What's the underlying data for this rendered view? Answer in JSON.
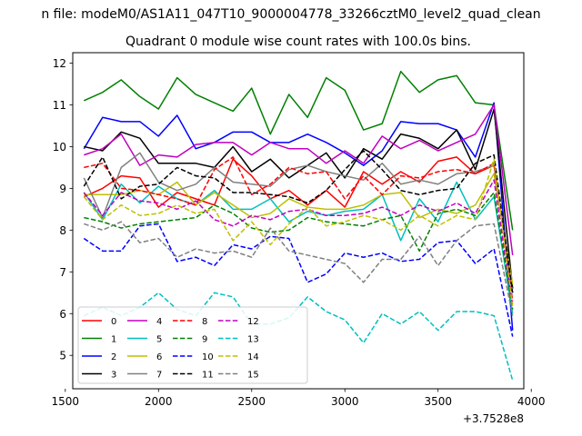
{
  "suptitle": "n file: modeM0/AS1A11_047T10_9000004778_33266cztM0_level2_quad_clean",
  "chart_data": {
    "type": "line",
    "title": "Quadrant 0 module wise count rates with 100.0s bins.",
    "xlabel": "",
    "ylabel": "",
    "x_offset_label": "+3.7528e8",
    "xlim": [
      1540,
      3960
    ],
    "ylim": [
      4.2,
      12.25
    ],
    "x_ticks": [
      1500,
      2000,
      2500,
      3000,
      3500,
      4000
    ],
    "x_tick_labels": [
      "1500",
      "2000",
      "2500",
      "3000",
      "3500",
      "4000"
    ],
    "y_ticks": [
      5,
      6,
      7,
      8,
      9,
      10,
      11,
      12
    ],
    "y_tick_labels": [
      "5",
      "6",
      "7",
      "8",
      "9",
      "10",
      "11",
      "12"
    ],
    "grid": false,
    "legend_location": "lower-left",
    "legend_columns": 5,
    "x": [
      1600,
      1700,
      1800,
      1900,
      2000,
      2100,
      2200,
      2300,
      2400,
      2500,
      2600,
      2700,
      2800,
      2900,
      3000,
      3100,
      3200,
      3300,
      3400,
      3500,
      3600,
      3700,
      3800,
      3900
    ],
    "series": [
      {
        "name": "0",
        "color": "#ff0000",
        "dash": "solid",
        "values": [
          8.8,
          9.0,
          9.3,
          9.25,
          8.55,
          8.9,
          8.75,
          8.6,
          9.7,
          9.3,
          8.75,
          8.95,
          8.6,
          8.95,
          8.55,
          9.4,
          9.1,
          9.4,
          9.15,
          9.65,
          9.75,
          9.35,
          9.55,
          6.6
        ]
      },
      {
        "name": "1",
        "color": "#008000",
        "dash": "solid",
        "values": [
          11.1,
          11.3,
          11.6,
          11.2,
          10.9,
          11.65,
          11.25,
          11.05,
          10.85,
          11.4,
          10.3,
          11.25,
          10.7,
          11.65,
          11.35,
          10.4,
          10.55,
          11.8,
          11.3,
          11.6,
          11.7,
          11.05,
          11.0,
          8.0
        ]
      },
      {
        "name": "2",
        "color": "#0000ff",
        "dash": "solid",
        "values": [
          9.95,
          10.7,
          10.6,
          10.6,
          10.25,
          10.75,
          9.95,
          10.1,
          10.35,
          10.35,
          10.1,
          10.1,
          10.3,
          10.1,
          9.85,
          9.55,
          9.9,
          10.6,
          10.55,
          10.55,
          10.4,
          9.75,
          11.05,
          5.6
        ]
      },
      {
        "name": "3",
        "color": "#000000",
        "dash": "solid",
        "values": [
          10.0,
          9.9,
          10.35,
          10.2,
          9.6,
          9.6,
          9.6,
          9.5,
          10.0,
          9.4,
          9.7,
          9.25,
          9.55,
          9.85,
          9.25,
          9.95,
          9.7,
          10.3,
          10.2,
          9.95,
          10.4,
          9.45,
          10.9,
          6.6
        ]
      },
      {
        "name": "4",
        "color": "#bf00bf",
        "dash": "solid",
        "values": [
          9.8,
          9.95,
          10.3,
          9.55,
          9.8,
          9.75,
          10.05,
          10.1,
          10.1,
          9.8,
          10.1,
          9.95,
          9.95,
          9.6,
          9.9,
          9.6,
          10.25,
          9.95,
          10.15,
          9.9,
          10.1,
          10.3,
          11.0,
          7.4
        ]
      },
      {
        "name": "5",
        "color": "#00bfbf",
        "dash": "solid",
        "values": [
          8.9,
          8.25,
          9.1,
          8.65,
          9.05,
          8.75,
          8.6,
          8.95,
          8.5,
          8.5,
          8.75,
          8.2,
          8.45,
          8.35,
          8.45,
          8.5,
          8.85,
          7.75,
          8.75,
          8.2,
          9.15,
          8.25,
          8.8,
          6.0
        ]
      },
      {
        "name": "6",
        "color": "#bfbf00",
        "dash": "solid",
        "values": [
          8.85,
          8.85,
          8.85,
          8.95,
          8.85,
          9.15,
          8.6,
          8.9,
          8.6,
          8.3,
          8.4,
          8.75,
          8.55,
          8.5,
          8.5,
          8.6,
          8.85,
          8.9,
          8.3,
          8.5,
          8.4,
          8.6,
          9.35,
          6.7
        ]
      },
      {
        "name": "7",
        "color": "#808080",
        "dash": "solid",
        "values": [
          9.25,
          8.3,
          9.5,
          9.85,
          9.15,
          8.95,
          9.1,
          9.5,
          9.15,
          9.1,
          9.05,
          9.45,
          9.55,
          9.4,
          9.3,
          9.2,
          9.6,
          9.1,
          9.2,
          9.1,
          9.35,
          9.4,
          9.55,
          6.5
        ]
      },
      {
        "name": "8",
        "color": "#ff0000",
        "dash": "dashed",
        "values": [
          9.5,
          9.6,
          9.0,
          8.95,
          8.85,
          8.75,
          8.6,
          9.45,
          9.75,
          8.85,
          9.1,
          9.5,
          9.35,
          9.4,
          8.75,
          9.3,
          8.85,
          9.3,
          9.25,
          9.4,
          9.45,
          9.35,
          9.6,
          6.3
        ]
      },
      {
        "name": "9",
        "color": "#008000",
        "dash": "dashed",
        "values": [
          8.3,
          8.2,
          8.05,
          8.15,
          8.2,
          8.25,
          8.3,
          8.6,
          8.4,
          8.05,
          7.95,
          8.0,
          8.3,
          8.2,
          8.15,
          8.1,
          8.25,
          8.35,
          7.5,
          8.4,
          8.5,
          8.35,
          8.9,
          6.1
        ]
      },
      {
        "name": "10",
        "color": "#0000ff",
        "dash": "dashed",
        "values": [
          7.8,
          7.5,
          7.5,
          8.1,
          8.15,
          7.25,
          7.35,
          7.15,
          7.65,
          7.55,
          7.85,
          7.8,
          6.75,
          6.95,
          7.45,
          7.35,
          7.45,
          7.25,
          7.3,
          7.7,
          7.75,
          7.2,
          7.55,
          5.45
        ]
      },
      {
        "name": "11",
        "color": "#000000",
        "dash": "dashed",
        "values": [
          9.05,
          9.75,
          8.75,
          9.05,
          9.1,
          9.5,
          9.3,
          9.25,
          8.9,
          8.9,
          8.85,
          8.8,
          8.65,
          8.95,
          9.45,
          9.9,
          9.45,
          8.95,
          8.85,
          8.95,
          9.0,
          9.6,
          9.8,
          6.5
        ]
      },
      {
        "name": "12",
        "color": "#bf00bf",
        "dash": "dashed",
        "values": [
          8.9,
          8.35,
          8.9,
          8.7,
          8.65,
          8.5,
          8.7,
          8.25,
          8.1,
          8.35,
          8.25,
          8.45,
          8.5,
          8.35,
          8.35,
          8.4,
          8.55,
          8.35,
          8.6,
          8.45,
          8.65,
          8.4,
          9.2,
          6.2
        ]
      },
      {
        "name": "13",
        "color": "#00bfbf",
        "dash": "dashed",
        "values": [
          5.95,
          6.15,
          5.95,
          6.15,
          6.5,
          6.1,
          5.95,
          6.5,
          6.4,
          5.75,
          5.75,
          5.9,
          6.4,
          6.05,
          5.85,
          5.3,
          6.0,
          5.75,
          6.05,
          5.6,
          6.05,
          6.05,
          5.95,
          4.4
        ]
      },
      {
        "name": "14",
        "color": "#bfbf00",
        "dash": "dashed",
        "values": [
          8.8,
          8.25,
          8.6,
          8.35,
          8.4,
          8.6,
          8.4,
          8.5,
          7.75,
          8.2,
          7.65,
          8.15,
          8.55,
          8.1,
          8.2,
          8.35,
          8.25,
          8.0,
          8.35,
          8.1,
          8.35,
          8.25,
          9.7,
          6.15
        ]
      },
      {
        "name": "15",
        "color": "#808080",
        "dash": "dashed",
        "values": [
          8.15,
          8.0,
          8.2,
          7.7,
          7.8,
          7.35,
          7.55,
          7.45,
          7.5,
          7.35,
          8.05,
          7.5,
          7.4,
          7.3,
          7.2,
          6.75,
          7.3,
          7.3,
          7.85,
          7.15,
          7.75,
          8.1,
          8.15,
          5.95
        ]
      }
    ]
  }
}
